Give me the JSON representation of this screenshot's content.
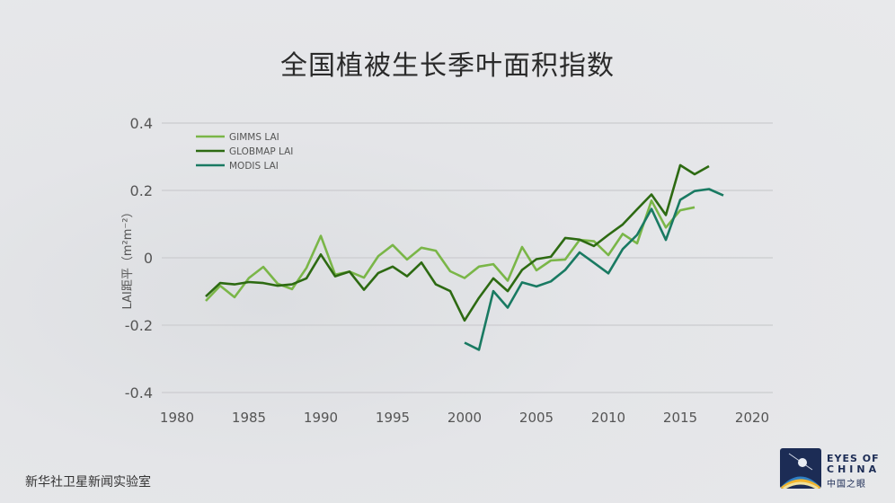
{
  "title": "全国植被生长季叶面积指数",
  "footer": "新华社卫星新闻实验室",
  "logo": {
    "line1": "EYES OF",
    "line2": "CHINA",
    "line3": "中国之眼"
  },
  "chart_data": {
    "type": "line",
    "title": "全国植被生长季叶面积指数",
    "ylabel": "LAI距平（m²m⁻²）",
    "xlabel": "",
    "xlim": [
      1980,
      2020
    ],
    "ylim": [
      -0.4,
      0.4
    ],
    "xticks": [
      1980,
      1985,
      1990,
      1995,
      2000,
      2005,
      2010,
      2015,
      2020
    ],
    "yticks": [
      0.4,
      0.2,
      0,
      -0.2,
      -0.4
    ],
    "ytick_labels": [
      "0.4",
      "0.2",
      "0",
      "-0.2",
      "-0.4"
    ],
    "grid": "horizontal",
    "legend": "top-left",
    "series": [
      {
        "name": "GIMMS LAI",
        "color": "#7ab648",
        "start": 1982,
        "values": [
          -0.128,
          -0.083,
          -0.117,
          -0.06,
          -0.027,
          -0.077,
          -0.093,
          -0.03,
          0.065,
          -0.05,
          -0.041,
          -0.059,
          0.005,
          0.038,
          -0.005,
          0.03,
          0.021,
          -0.04,
          -0.06,
          -0.026,
          -0.019,
          -0.068,
          0.032,
          -0.037,
          -0.008,
          -0.005,
          0.053,
          0.049,
          0.008,
          0.071,
          0.043,
          0.17,
          0.09,
          0.141,
          0.15
        ]
      },
      {
        "name": "GLOBMAP  LAI",
        "color": "#2d6a12",
        "start": 1982,
        "values": [
          -0.115,
          -0.075,
          -0.079,
          -0.072,
          -0.075,
          -0.083,
          -0.079,
          -0.061,
          0.01,
          -0.055,
          -0.041,
          -0.095,
          -0.045,
          -0.026,
          -0.055,
          -0.014,
          -0.079,
          -0.099,
          -0.186,
          -0.119,
          -0.061,
          -0.099,
          -0.036,
          -0.004,
          0.003,
          0.059,
          0.054,
          0.035,
          0.068,
          0.099,
          0.144,
          0.188,
          0.127,
          0.275,
          0.248,
          0.272
        ]
      },
      {
        "name": "MODIS LAI",
        "color": "#197a62",
        "start": 2000,
        "values": [
          -0.252,
          -0.273,
          -0.099,
          -0.148,
          -0.073,
          -0.085,
          -0.07,
          -0.036,
          0.016,
          -0.015,
          -0.046,
          0.026,
          0.068,
          0.145,
          0.053,
          0.172,
          0.198,
          0.204,
          0.185
        ]
      }
    ]
  }
}
